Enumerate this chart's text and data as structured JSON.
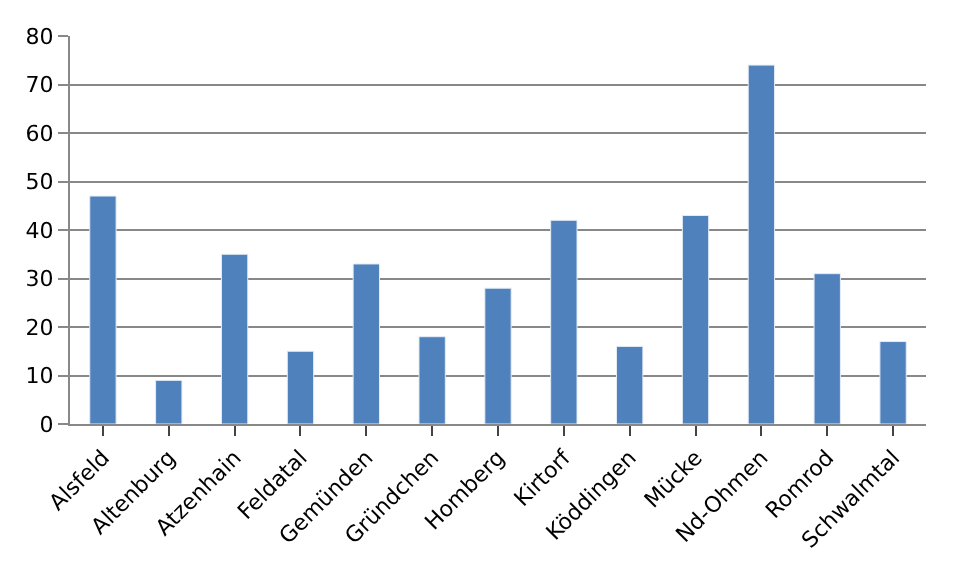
{
  "chart_data": {
    "type": "bar",
    "categories": [
      "Alsfeld",
      "Altenburg",
      "Atzenhain",
      "Feldatal",
      "Gemünden",
      "Gründchen",
      "Homberg",
      "Kirtorf",
      "Köddingen",
      "Mücke",
      "Nd-Ohmen",
      "Romrod",
      "Schwalmtal"
    ],
    "values": [
      47,
      9,
      35,
      15,
      33,
      18,
      28,
      42,
      16,
      43,
      74,
      31,
      17
    ],
    "color": "#4f81bd",
    "ylim": [
      0,
      80
    ],
    "yticks": [
      0,
      10,
      20,
      30,
      40,
      50,
      60,
      70,
      80
    ],
    "grid": "y"
  }
}
